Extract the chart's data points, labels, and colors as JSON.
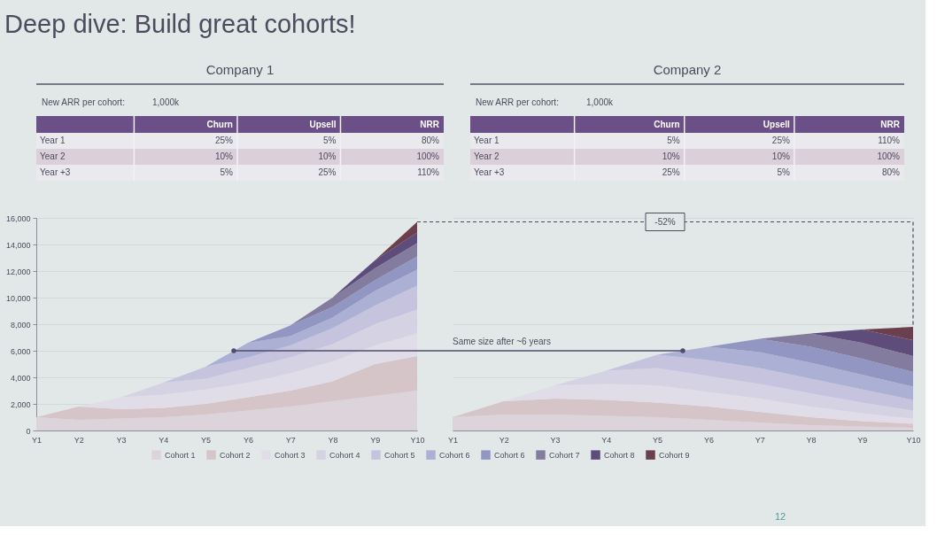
{
  "chart_data": [
    {
      "type": "other",
      "title": "Deep dive: Build great cohorts!"
    },
    {
      "type": "other",
      "title": "Company 1",
      "annotations": [
        "New ARR per cohort:",
        "1,000k"
      ],
      "categories": [
        "Churn",
        "Upsell",
        "NRR"
      ],
      "y_categories": [
        "Year 1",
        "Year 2",
        "Year +3"
      ],
      "cell_labels": [
        [
          "25%",
          "5%",
          "80%"
        ],
        [
          "10%",
          "10%",
          "100%"
        ],
        [
          "5%",
          "25%",
          "110%"
        ]
      ]
    },
    {
      "type": "other",
      "title": "Company 2",
      "annotations": [
        "New ARR per cohort:",
        "1,000k"
      ],
      "categories": [
        "Churn",
        "Upsell",
        "NRR"
      ],
      "y_categories": [
        "Year 1",
        "Year 2",
        "Year +3"
      ],
      "cell_labels": [
        [
          "5%",
          "25%",
          "110%"
        ],
        [
          "10%",
          "10%",
          "100%"
        ],
        [
          "25%",
          "5%",
          "80%"
        ]
      ]
    },
    {
      "type": "area",
      "stacked": true,
      "categories": [
        "Y1",
        "Y2",
        "Y3",
        "Y4",
        "Y5",
        "Y6",
        "Y7",
        "Y8",
        "Y9",
        "Y10"
      ],
      "ylim": [
        0,
        16000
      ],
      "yticks": [
        0,
        {
          "value": 2000,
          "label": "2,000"
        },
        {
          "value": 4000,
          "label": "4,000"
        },
        {
          "value": 6000,
          "label": "6,000"
        },
        {
          "value": 8000,
          "label": "8,000"
        },
        {
          "value": 10000,
          "label": "10,000"
        },
        {
          "value": 12000,
          "label": "12,000"
        },
        {
          "value": 14000,
          "label": "14,000"
        },
        {
          "value": 16000,
          "label": "16,000"
        }
      ],
      "grid": "y",
      "legend": "bottom",
      "series": [
        {
          "name": "Cohort 1",
          "color": "#ddd3da",
          "values": [
            1000,
            800,
            900,
            1000,
            1200,
            1500,
            1800,
            2200,
            2600,
            3000
          ]
        },
        {
          "name": "Cohort 2",
          "color": "#d6c5c8",
          "values": [
            0,
            1000,
            700,
            700,
            800,
            1000,
            1200,
            1500,
            2400,
            2600
          ]
        },
        {
          "name": "Cohort 3",
          "color": "#e0dde8",
          "values": [
            0,
            0,
            900,
            1000,
            1100,
            1100,
            1300,
            1500,
            1400,
            1700
          ]
        },
        {
          "name": "Cohort 4",
          "color": "#d5d2e4",
          "values": [
            0,
            0,
            0,
            900,
            800,
            1100,
            1200,
            1300,
            1600,
            1800
          ]
        },
        {
          "name": "Cohort 5",
          "color": "#c5c3de",
          "values": [
            0,
            0,
            0,
            0,
            900,
            800,
            900,
            1200,
            1400,
            1800
          ]
        },
        {
          "name": "Cohort 6",
          "color": "#abb0d4",
          "values": [
            0,
            0,
            0,
            0,
            0,
            1100,
            700,
            800,
            1100,
            1200
          ]
        },
        {
          "name": "Cohort 6",
          "color": "#9196c2",
          "values": [
            0,
            0,
            0,
            0,
            0,
            0,
            800,
            800,
            800,
            1000
          ]
        },
        {
          "name": "Cohort 7",
          "color": "#847c9f",
          "values": [
            0,
            0,
            0,
            0,
            0,
            0,
            0,
            700,
            900,
            1000
          ]
        },
        {
          "name": "Cohort 8",
          "color": "#5e4d7b",
          "values": [
            0,
            0,
            0,
            0,
            0,
            0,
            0,
            0,
            600,
            800
          ]
        },
        {
          "name": "Cohort 9",
          "color": "#6b3f4b",
          "values": [
            0,
            0,
            0,
            0,
            0,
            0,
            0,
            0,
            0,
            800
          ]
        }
      ]
    },
    {
      "type": "area",
      "stacked": true,
      "categories": [
        "Y1",
        "Y2",
        "Y3",
        "Y4",
        "Y5",
        "Y6",
        "Y7",
        "Y8",
        "Y9",
        "Y10"
      ],
      "ylim": [
        0,
        16000
      ],
      "yticks": [
        0,
        2000,
        4000,
        6000,
        8000,
        10000,
        12000,
        14000,
        16000
      ],
      "grid": "y",
      "tick_labels": "x",
      "ref_lines": [
        {
          "axis": "y",
          "value": 15700,
          "line_style": "dashed"
        },
        {
          "axis": "y",
          "value": 6000,
          "label": "Same size after ~6 years"
        }
      ],
      "annotations": [
        {
          "text": "-52%",
          "y": 15700
        },
        "12"
      ],
      "series": [
        {
          "color": "#ddd3da",
          "values": [
            1000,
            1200,
            1200,
            1100,
            1000,
            800,
            600,
            400,
            300,
            200
          ]
        },
        {
          "color": "#d6c5c8",
          "values": [
            0,
            1000,
            1200,
            1200,
            1100,
            1000,
            800,
            600,
            400,
            300
          ]
        },
        {
          "color": "#e0dde8",
          "values": [
            0,
            0,
            1000,
            1200,
            1300,
            1100,
            1000,
            800,
            600,
            400
          ]
        },
        {
          "color": "#d5d2e4",
          "values": [
            0,
            0,
            0,
            1000,
            1300,
            1200,
            1100,
            1000,
            800,
            600
          ]
        },
        {
          "color": "#c5c3de",
          "values": [
            0,
            0,
            0,
            0,
            1000,
            1200,
            1200,
            1100,
            1000,
            800
          ]
        },
        {
          "color": "#abb0d4",
          "values": [
            0,
            0,
            0,
            0,
            0,
            1000,
            1200,
            1200,
            1100,
            1000
          ]
        },
        {
          "color": "#9196c2",
          "values": [
            0,
            0,
            0,
            0,
            0,
            0,
            1000,
            1200,
            1200,
            1100
          ]
        },
        {
          "color": "#847c9f",
          "values": [
            0,
            0,
            0,
            0,
            0,
            0,
            0,
            1000,
            1200,
            1200
          ]
        },
        {
          "color": "#5e4d7b",
          "values": [
            0,
            0,
            0,
            0,
            0,
            0,
            0,
            0,
            1000,
            1200
          ]
        },
        {
          "color": "#6b3f4b",
          "values": [
            0,
            0,
            0,
            0,
            0,
            0,
            0,
            0,
            0,
            1000
          ]
        }
      ]
    }
  ]
}
